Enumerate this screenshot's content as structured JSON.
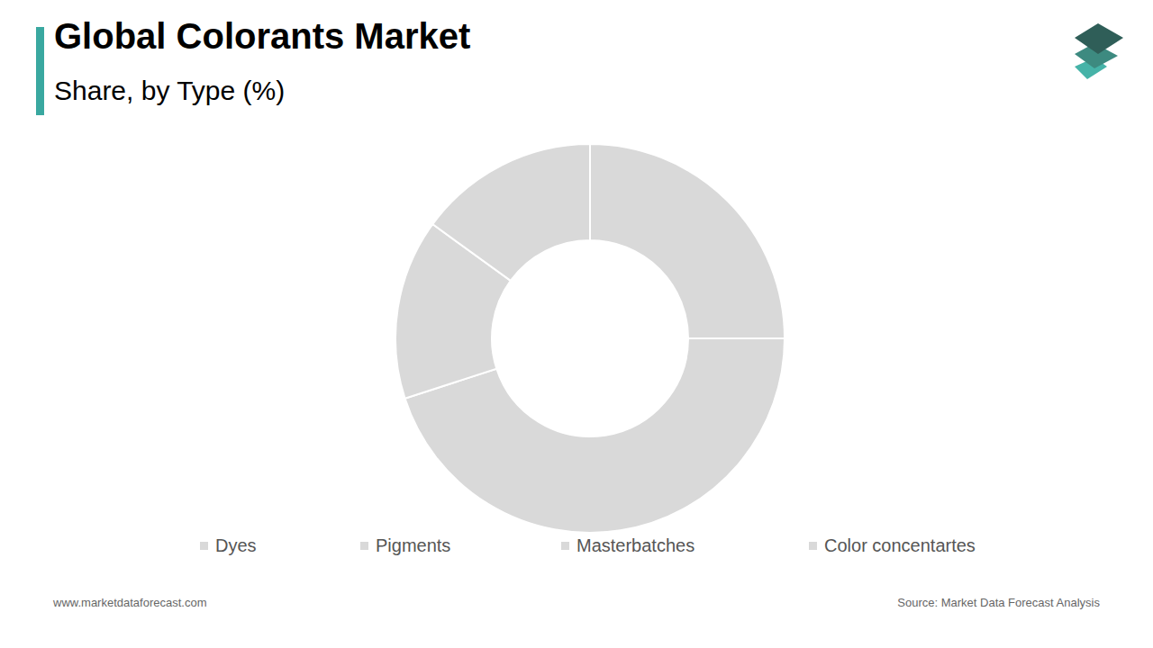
{
  "chart_data": {
    "type": "pie",
    "title": "Global Colorants Market",
    "subtitle": "Share, by Type (%)",
    "categories": [
      "Dyes",
      "Pigments",
      "Masterbatches",
      "Color concentartes"
    ],
    "values": [
      25,
      45,
      15,
      15
    ],
    "colors": [
      "#d9d9d9",
      "#d9d9d9",
      "#d9d9d9",
      "#d9d9d9"
    ],
    "legend": "bottom",
    "website": "www.marketdataforecast.com",
    "source": "Source: Market Data Forecast Analysis"
  }
}
